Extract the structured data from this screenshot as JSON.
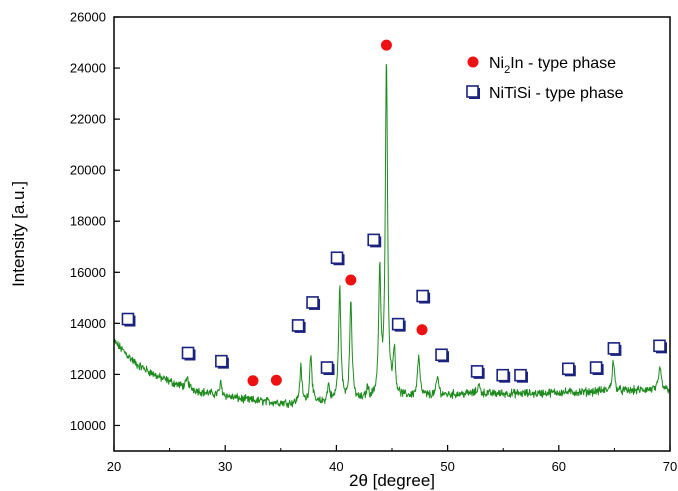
{
  "chart_data": {
    "type": "line",
    "title": "",
    "xlabel": "2θ [degree]",
    "ylabel": "Intensity [a.u.]",
    "xlim": [
      20,
      70
    ],
    "ylim": [
      9000,
      26000
    ],
    "x_ticks": [
      20,
      30,
      40,
      50,
      60,
      70
    ],
    "y_ticks": [
      10000,
      12000,
      14000,
      16000,
      18000,
      20000,
      22000,
      24000,
      26000
    ],
    "grid": false,
    "legend_position": "top-right",
    "colors": {
      "line": "#1e8a1e",
      "circle": "#ee1111",
      "square_edge": "#1a237e"
    },
    "series": [
      {
        "type": "line",
        "baseline": [
          [
            20,
            13300
          ],
          [
            22,
            12400
          ],
          [
            24,
            11900
          ],
          [
            26,
            11550
          ],
          [
            28,
            11300
          ],
          [
            30,
            11150
          ],
          [
            32,
            11000
          ],
          [
            34,
            10920
          ],
          [
            36,
            10850
          ],
          [
            38,
            10850
          ],
          [
            40,
            10900
          ],
          [
            42,
            10950
          ],
          [
            44,
            11000
          ],
          [
            46,
            11100
          ],
          [
            48,
            11150
          ],
          [
            50,
            11200
          ],
          [
            52,
            11250
          ],
          [
            54,
            11250
          ],
          [
            56,
            11250
          ],
          [
            58,
            11250
          ],
          [
            60,
            11300
          ],
          [
            62,
            11300
          ],
          [
            64,
            11350
          ],
          [
            66,
            11350
          ],
          [
            68,
            11400
          ],
          [
            70,
            11400
          ]
        ],
        "peaks": [
          {
            "x": 26.6,
            "y": 11850
          },
          {
            "x": 29.6,
            "y": 11650
          },
          {
            "x": 36.8,
            "y": 12250
          },
          {
            "x": 37.7,
            "y": 12800
          },
          {
            "x": 39.3,
            "y": 11550
          },
          {
            "x": 40.3,
            "y": 15400
          },
          {
            "x": 41.3,
            "y": 14850
          },
          {
            "x": 42.8,
            "y": 11400
          },
          {
            "x": 43.9,
            "y": 15850
          },
          {
            "x": 44.5,
            "y": 24200
          },
          {
            "x": 45.2,
            "y": 12800
          },
          {
            "x": 47.4,
            "y": 12700
          },
          {
            "x": 49.1,
            "y": 11900
          },
          {
            "x": 52.8,
            "y": 11600
          },
          {
            "x": 64.9,
            "y": 12550
          },
          {
            "x": 69.1,
            "y": 12300
          }
        ]
      },
      {
        "type": "scatter",
        "name": "Ni2In - type phase",
        "marker": "circle",
        "points": [
          [
            32.5,
            11750
          ],
          [
            34.6,
            11770
          ],
          [
            41.3,
            15700
          ],
          [
            44.5,
            24900
          ],
          [
            47.7,
            13750
          ]
        ]
      },
      {
        "type": "scatter",
        "name": "NiTiSi - type phase",
        "marker": "square",
        "points": [
          [
            21.3,
            14150
          ],
          [
            26.7,
            12820
          ],
          [
            29.7,
            12500
          ],
          [
            36.6,
            13900
          ],
          [
            37.9,
            14800
          ],
          [
            39.2,
            12250
          ],
          [
            40.1,
            16550
          ],
          [
            43.4,
            17250
          ],
          [
            45.6,
            13950
          ],
          [
            47.8,
            15050
          ],
          [
            49.5,
            12750
          ],
          [
            52.7,
            12100
          ],
          [
            55.0,
            11950
          ],
          [
            56.6,
            11950
          ],
          [
            60.9,
            12200
          ],
          [
            63.4,
            12250
          ],
          [
            65.0,
            13000
          ],
          [
            69.1,
            13100
          ]
        ]
      }
    ]
  },
  "legend": {
    "items": [
      {
        "pre": "Ni",
        "sub": "2",
        "post": "In - type phase",
        "marker": "circle"
      },
      {
        "pre": "NiTiSi - type phase",
        "sub": "",
        "post": "",
        "marker": "square"
      }
    ]
  }
}
